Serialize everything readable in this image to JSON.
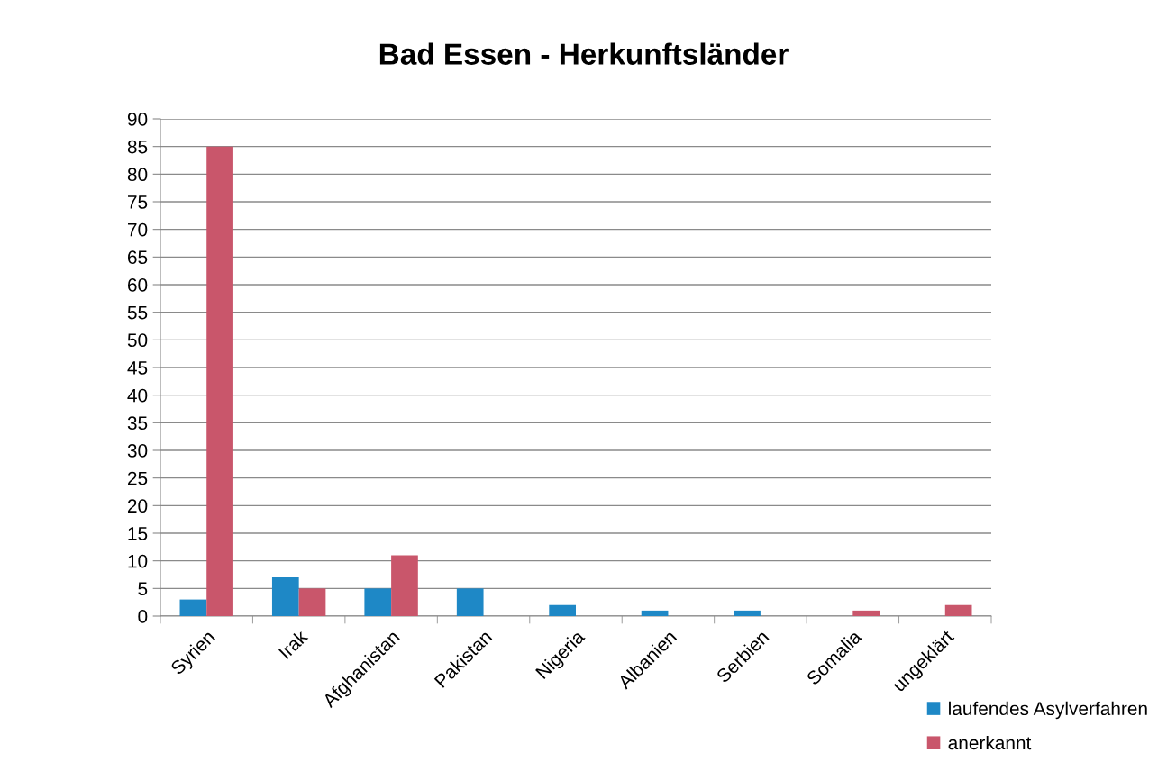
{
  "chart_data": {
    "type": "bar",
    "title": "Bad Essen - Herkunftsländer",
    "categories": [
      "Syrien",
      "Irak",
      "Afghanistan",
      "Pakistan",
      "Nigeria",
      "Albanien",
      "Serbien",
      "Somalia",
      "ungeklärt"
    ],
    "series": [
      {
        "name": "laufendes Asylverfahren",
        "color": "#1e88c6",
        "values": [
          3,
          7,
          5,
          5,
          2,
          1,
          1,
          0,
          0
        ]
      },
      {
        "name": "anerkannt",
        "color": "#c9566b",
        "values": [
          85,
          5,
          11,
          0,
          0,
          0,
          0,
          1,
          2
        ]
      }
    ],
    "ylim": [
      0,
      90
    ],
    "yticks": [
      0,
      5,
      10,
      15,
      20,
      25,
      30,
      35,
      40,
      45,
      50,
      55,
      60,
      65,
      70,
      75,
      80,
      85,
      90
    ],
    "grid": "y",
    "legend": "bottom right"
  }
}
